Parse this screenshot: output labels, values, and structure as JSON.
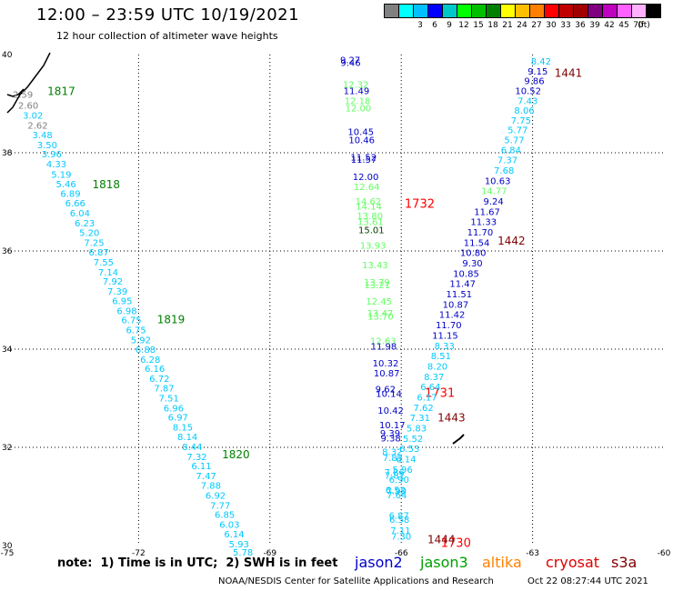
{
  "title": "12:00 – 23:59 UTC 10/19/2021",
  "subtitle": "12 hour collection of altimeter wave heights",
  "legend": {
    "unit": "(ft)",
    "colors": [
      "#808080",
      "#00ffff",
      "#00bfff",
      "#0000ff",
      "#00c8c8",
      "#00ff00",
      "#00c000",
      "#008000",
      "#ffff00",
      "#ffc000",
      "#ff8000",
      "#ff0000",
      "#c00000",
      "#a00000",
      "#800080",
      "#c000c0",
      "#ff60ff",
      "#ffb0ff",
      "#000000"
    ],
    "labels": [
      "3",
      "6",
      "9",
      "12",
      "15",
      "18",
      "21",
      "24",
      "27",
      "30",
      "33",
      "36",
      "39",
      "42",
      "45",
      "70"
    ]
  },
  "axes": {
    "lon_ticks": [
      "-75",
      "-72",
      "-69",
      "-66",
      "-63",
      "-60"
    ],
    "lat_ticks": [
      "40",
      "38",
      "36",
      "34",
      "32",
      "30"
    ]
  },
  "tracks": [
    {
      "name": "track-1817-1820",
      "pass_labels": [
        {
          "text": "1817",
          "color": "#008000",
          "lat": 39.25
        },
        {
          "text": "1818",
          "color": "#008000",
          "lat": 37.35
        },
        {
          "text": "1819",
          "color": "#008000",
          "lat": 34.6
        },
        {
          "text": "1820",
          "color": "#008000",
          "lat": 31.85
        }
      ],
      "points": [
        {
          "v": "2.59",
          "c": "#808080",
          "lat": 39.18
        },
        {
          "v": "2.60",
          "c": "#808080",
          "lat": 38.95
        },
        {
          "v": "3.02",
          "c": "#00c8ff",
          "lat": 38.75
        },
        {
          "v": "2.62",
          "c": "#808080",
          "lat": 38.55
        },
        {
          "v": "3.48",
          "c": "#00c8ff",
          "lat": 38.35
        },
        {
          "v": "3.50",
          "c": "#00c8ff",
          "lat": 38.15
        },
        {
          "v": "3.96",
          "c": "#00c8ff",
          "lat": 37.96
        },
        {
          "v": "4.33",
          "c": "#00c8ff",
          "lat": 37.76
        },
        {
          "v": "5.19",
          "c": "#00c8ff",
          "lat": 37.55
        },
        {
          "v": "5.46",
          "c": "#00c8ff",
          "lat": 37.35
        },
        {
          "v": "6.89",
          "c": "#00c8ff",
          "lat": 37.16
        },
        {
          "v": "6.66",
          "c": "#00c8ff",
          "lat": 36.96
        },
        {
          "v": "6.04",
          "c": "#00c8ff",
          "lat": 36.76
        },
        {
          "v": "6.23",
          "c": "#00c8ff",
          "lat": 36.56
        },
        {
          "v": "5.20",
          "c": "#00c8ff",
          "lat": 36.36
        },
        {
          "v": "7.25",
          "c": "#00c8ff",
          "lat": 36.16
        },
        {
          "v": "6.87",
          "c": "#00c8ff",
          "lat": 35.96
        },
        {
          "v": "7.55",
          "c": "#00c8ff",
          "lat": 35.76
        },
        {
          "v": "7.14",
          "c": "#00c8ff",
          "lat": 35.56
        },
        {
          "v": "7.92",
          "c": "#00c8ff",
          "lat": 35.37
        },
        {
          "v": "7.39",
          "c": "#00c8ff",
          "lat": 35.17
        },
        {
          "v": "6.95",
          "c": "#00c8ff",
          "lat": 34.97
        },
        {
          "v": "6.98",
          "c": "#00c8ff",
          "lat": 34.77
        },
        {
          "v": "6.75",
          "c": "#00c8ff",
          "lat": 34.58
        },
        {
          "v": "6.75",
          "c": "#00c8ff",
          "lat": 34.38
        },
        {
          "v": "5.92",
          "c": "#00c8ff",
          "lat": 34.18
        },
        {
          "v": "6.88",
          "c": "#00c8ff",
          "lat": 33.98
        },
        {
          "v": "6.28",
          "c": "#00c8ff",
          "lat": 33.78
        },
        {
          "v": "6.16",
          "c": "#00c8ff",
          "lat": 33.59
        },
        {
          "v": "6.72",
          "c": "#00c8ff",
          "lat": 33.39
        },
        {
          "v": "7.87",
          "c": "#00c8ff",
          "lat": 33.19
        },
        {
          "v": "7.51",
          "c": "#00c8ff",
          "lat": 32.99
        },
        {
          "v": "6.96",
          "c": "#00c8ff",
          "lat": 32.79
        },
        {
          "v": "6.97",
          "c": "#00c8ff",
          "lat": 32.6
        },
        {
          "v": "8.15",
          "c": "#00c8ff",
          "lat": 32.4
        },
        {
          "v": "8.14",
          "c": "#00c8ff",
          "lat": 32.2
        },
        {
          "v": "8.44",
          "c": "#00c8ff",
          "lat": 32.0
        },
        {
          "v": "7.32",
          "c": "#00c8ff",
          "lat": 31.8
        },
        {
          "v": "6.11",
          "c": "#00c8ff",
          "lat": 31.61
        },
        {
          "v": "7.47",
          "c": "#00c8ff",
          "lat": 31.41
        },
        {
          "v": "7.88",
          "c": "#00c8ff",
          "lat": 31.21
        },
        {
          "v": "6.92",
          "c": "#00c8ff",
          "lat": 31.01
        },
        {
          "v": "7.77",
          "c": "#00c8ff",
          "lat": 30.81
        },
        {
          "v": "6.85",
          "c": "#00c8ff",
          "lat": 30.62
        },
        {
          "v": "6.03",
          "c": "#00c8ff",
          "lat": 30.42
        },
        {
          "v": "6.14",
          "c": "#00c8ff",
          "lat": 30.22
        },
        {
          "v": "5.93",
          "c": "#00c8ff",
          "lat": 30.02
        },
        {
          "v": "5.78",
          "c": "#00c8ff",
          "lat": 29.85
        }
      ]
    }
  ],
  "col_jason": {
    "pass_labels": [
      {
        "text": "1732",
        "color": "#ff0000",
        "lat": 36.95
      },
      {
        "text": "1731",
        "color": "#ff0000",
        "lat": 33.1
      },
      {
        "text": "1730",
        "color": "#ff0000",
        "lat": 30.05
      }
    ],
    "points": [
      {
        "v": "9.27",
        "c": "#0000c8",
        "lat": 39.88
      },
      {
        "v": "9.46",
        "c": "#0000c8",
        "lat": 39.82
      },
      {
        "v": "12.32",
        "c": "#60ff60",
        "lat": 39.38
      },
      {
        "v": "11.49",
        "c": "#0000c8",
        "lat": 39.25
      },
      {
        "v": "12.18",
        "c": "#60ff60",
        "lat": 39.05
      },
      {
        "v": "12.00",
        "c": "#60ff60",
        "lat": 38.9
      },
      {
        "v": "10.45",
        "c": "#0000c8",
        "lat": 38.42
      },
      {
        "v": "10.46",
        "c": "#0000c8",
        "lat": 38.25
      },
      {
        "v": "11.52",
        "c": "#0000c8",
        "lat": 37.9
      },
      {
        "v": "11.57",
        "c": "#0000c8",
        "lat": 37.85
      },
      {
        "v": "12.00",
        "c": "#0000c8",
        "lat": 37.5
      },
      {
        "v": "12.64",
        "c": "#60ff60",
        "lat": 37.3
      },
      {
        "v": "14.62",
        "c": "#60ff60",
        "lat": 37.0
      },
      {
        "v": "14.14",
        "c": "#60ff60",
        "lat": 36.9
      },
      {
        "v": "13.80",
        "c": "#60ff60",
        "lat": 36.7
      },
      {
        "v": "13.61",
        "c": "#60ff60",
        "lat": 36.58
      },
      {
        "v": "15.01",
        "c": "#004000",
        "lat": 36.42
      },
      {
        "v": "13.93",
        "c": "#60ff60",
        "lat": 36.1
      },
      {
        "v": "13.43",
        "c": "#60ff60",
        "lat": 35.7
      },
      {
        "v": "13.79",
        "c": "#60ff60",
        "lat": 35.35
      },
      {
        "v": "13.21",
        "c": "#60ff60",
        "lat": 35.3
      },
      {
        "v": "12.45",
        "c": "#60ff60",
        "lat": 34.96
      },
      {
        "v": "13.47",
        "c": "#60ff60",
        "lat": 34.72
      },
      {
        "v": "13.70",
        "c": "#60ff60",
        "lat": 34.66
      },
      {
        "v": "12.63",
        "c": "#60ff60",
        "lat": 34.16
      },
      {
        "v": "11.98",
        "c": "#0000c8",
        "lat": 34.05
      },
      {
        "v": "10.32",
        "c": "#0000c8",
        "lat": 33.7
      },
      {
        "v": "10.87",
        "c": "#0000c8",
        "lat": 33.5
      },
      {
        "v": "9.62",
        "c": "#0000c8",
        "lat": 33.18
      },
      {
        "v": "10.14",
        "c": "#0000c8",
        "lat": 33.08
      },
      {
        "v": "10.42",
        "c": "#0000c8",
        "lat": 32.74
      },
      {
        "v": "10.17",
        "c": "#0000c8",
        "lat": 32.44
      },
      {
        "v": "9.39",
        "c": "#0000c8",
        "lat": 32.28
      },
      {
        "v": "9.38",
        "c": "#0000c8",
        "lat": 32.18
      },
      {
        "v": "8.32",
        "c": "#00c8ff",
        "lat": 31.9
      },
      {
        "v": "7.83",
        "c": "#00c8ff",
        "lat": 31.78
      },
      {
        "v": "7.86",
        "c": "#00c8ff",
        "lat": 31.48
      },
      {
        "v": "7.81",
        "c": "#00c8ff",
        "lat": 31.42
      },
      {
        "v": "7.99",
        "c": "#00c8ff",
        "lat": 31.1
      },
      {
        "v": "7.64",
        "c": "#00c8ff",
        "lat": 31.02
      },
      {
        "v": "6.87",
        "c": "#00c8ff",
        "lat": 30.6
      },
      {
        "v": "6.58",
        "c": "#00c8ff",
        "lat": 30.52
      },
      {
        "v": "7.11",
        "c": "#00c8ff",
        "lat": 30.3
      },
      {
        "v": "7.30",
        "c": "#00c8ff",
        "lat": 30.18
      }
    ]
  },
  "col_right": {
    "pass_labels": [
      {
        "text": "1441",
        "color": "#800000",
        "lat": 39.62
      },
      {
        "text": "1442",
        "color": "#800000",
        "lat": 36.2
      },
      {
        "text": "1443",
        "color": "#800000",
        "lat": 32.6
      },
      {
        "text": "1444",
        "color": "#800000",
        "lat": 30.12
      }
    ],
    "points": [
      {
        "v": "8.42",
        "c": "#00c8ff",
        "lat": 39.85
      },
      {
        "v": "9.15",
        "c": "#0000c8",
        "lat": 39.65
      },
      {
        "v": "9.86",
        "c": "#0000c8",
        "lat": 39.45
      },
      {
        "v": "10.52",
        "c": "#0000c8",
        "lat": 39.25
      },
      {
        "v": "7.43",
        "c": "#00c8ff",
        "lat": 39.05
      },
      {
        "v": "8.06",
        "c": "#00c8ff",
        "lat": 38.85
      },
      {
        "v": "7.75",
        "c": "#00c8ff",
        "lat": 38.65
      },
      {
        "v": "5.77",
        "c": "#00c8ff",
        "lat": 38.45
      },
      {
        "v": "5.77",
        "c": "#00c8ff",
        "lat": 38.25
      },
      {
        "v": "6.84",
        "c": "#00c8ff",
        "lat": 38.05
      },
      {
        "v": "7.37",
        "c": "#00c8ff",
        "lat": 37.84
      },
      {
        "v": "7.68",
        "c": "#00c8ff",
        "lat": 37.63
      },
      {
        "v": "10.63",
        "c": "#0000c8",
        "lat": 37.42
      },
      {
        "v": "14.77",
        "c": "#60ff60",
        "lat": 37.21
      },
      {
        "v": "9.24",
        "c": "#0000c8",
        "lat": 37.0
      },
      {
        "v": "11.67",
        "c": "#0000c8",
        "lat": 36.79
      },
      {
        "v": "11.33",
        "c": "#0000c8",
        "lat": 36.58
      },
      {
        "v": "11.70",
        "c": "#0000c8",
        "lat": 36.37
      },
      {
        "v": "11.54",
        "c": "#0000c8",
        "lat": 36.16
      },
      {
        "v": "10.80",
        "c": "#0000c8",
        "lat": 35.95
      },
      {
        "v": "9.30",
        "c": "#0000c8",
        "lat": 35.74
      },
      {
        "v": "10.85",
        "c": "#0000c8",
        "lat": 35.53
      },
      {
        "v": "11.47",
        "c": "#0000c8",
        "lat": 35.32
      },
      {
        "v": "11.51",
        "c": "#0000c8",
        "lat": 35.11
      },
      {
        "v": "10.87",
        "c": "#0000c8",
        "lat": 34.9
      },
      {
        "v": "11.42",
        "c": "#0000c8",
        "lat": 34.69
      },
      {
        "v": "11.70",
        "c": "#0000c8",
        "lat": 34.48
      },
      {
        "v": "11.15",
        "c": "#0000c8",
        "lat": 34.27
      },
      {
        "v": "8.33",
        "c": "#00c8ff",
        "lat": 34.06
      },
      {
        "v": "8.51",
        "c": "#00c8ff",
        "lat": 33.85
      },
      {
        "v": "8.20",
        "c": "#00c8ff",
        "lat": 33.64
      },
      {
        "v": "8.37",
        "c": "#00c8ff",
        "lat": 33.43
      },
      {
        "v": "6.64",
        "c": "#00c8ff",
        "lat": 33.22
      },
      {
        "v": "6.17",
        "c": "#00c8ff",
        "lat": 33.01
      },
      {
        "v": "7.62",
        "c": "#00c8ff",
        "lat": 32.8
      },
      {
        "v": "7.31",
        "c": "#00c8ff",
        "lat": 32.59
      },
      {
        "v": "5.83",
        "c": "#00c8ff",
        "lat": 32.38
      },
      {
        "v": "5.52",
        "c": "#00c8ff",
        "lat": 32.17
      },
      {
        "v": "6.53",
        "c": "#00c8ff",
        "lat": 31.96
      },
      {
        "v": "6.14",
        "c": "#00c8ff",
        "lat": 31.75
      },
      {
        "v": "5.96",
        "c": "#00c8ff",
        "lat": 31.54
      },
      {
        "v": "6.90",
        "c": "#00c8ff",
        "lat": 31.33
      },
      {
        "v": "6.52",
        "c": "#00c8ff",
        "lat": 31.12
      }
    ]
  },
  "footer": {
    "note": "note:  1) Time is in UTC;  2) SWH is in feet",
    "satellites": [
      {
        "name": "jason2",
        "color": "#0000c8"
      },
      {
        "name": "jason3",
        "color": "#00a000"
      },
      {
        "name": "altika",
        "color": "#ff8000"
      },
      {
        "name": "cryosat",
        "color": "#e00000"
      },
      {
        "name": "s3a",
        "color": "#800000"
      }
    ],
    "credit": "NOAA/NESDIS Center for Satellite Applications and Research",
    "timestamp": "Oct 22 08:27:44 UTC 2021"
  }
}
